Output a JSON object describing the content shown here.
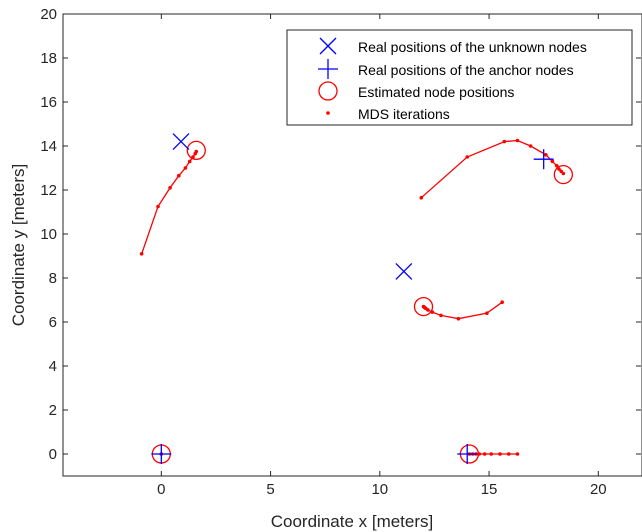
{
  "chart_data": {
    "type": "scatter",
    "xlabel": "Coordinate x [meters]",
    "ylabel": "Coordinate y [meters]",
    "xlim": [
      -4.5,
      22
    ],
    "ylim": [
      -1,
      20
    ],
    "xticks": [
      0,
      5,
      10,
      15,
      20
    ],
    "yticks": [
      0,
      2,
      4,
      6,
      8,
      10,
      12,
      14,
      16,
      18,
      20
    ],
    "grid": false,
    "legend_position": "top-right",
    "colors": {
      "real": "#0000ff",
      "estimate": "#ff0000",
      "axis": "#262626"
    },
    "legend": [
      {
        "marker": "x",
        "label": "Real positions of the unknown nodes"
      },
      {
        "marker": "+",
        "label": "Real positions of the anchor nodes"
      },
      {
        "marker": "o",
        "label": "Estimated node positions"
      },
      {
        "marker": ".",
        "label": "MDS iterations"
      }
    ],
    "unknown_nodes": [
      [
        0.9,
        14.2
      ],
      [
        11.1,
        8.3
      ]
    ],
    "anchor_nodes": [
      [
        0,
        0
      ],
      [
        14,
        0
      ],
      [
        17.5,
        13.4
      ]
    ],
    "estimated_nodes": [
      [
        1.6,
        13.8
      ],
      [
        12.0,
        6.7
      ],
      [
        18.4,
        12.7
      ],
      [
        0,
        0
      ],
      [
        14.1,
        0
      ]
    ],
    "mds_iterations": [
      [
        [
          -0.9,
          9.1
        ],
        [
          -0.15,
          11.25
        ],
        [
          0.4,
          12.1
        ],
        [
          0.8,
          12.65
        ],
        [
          1.1,
          13.0
        ],
        [
          1.3,
          13.3
        ],
        [
          1.45,
          13.5
        ],
        [
          1.55,
          13.65
        ],
        [
          1.6,
          13.75
        ]
      ],
      [
        [
          11.9,
          11.65
        ],
        [
          14.0,
          13.5
        ],
        [
          15.7,
          14.2
        ],
        [
          16.3,
          14.25
        ],
        [
          16.9,
          14.0
        ],
        [
          17.6,
          13.6
        ],
        [
          17.9,
          13.3
        ],
        [
          18.1,
          13.1
        ],
        [
          18.2,
          12.95
        ],
        [
          18.3,
          12.85
        ],
        [
          18.4,
          12.75
        ]
      ],
      [
        [
          15.6,
          6.9
        ],
        [
          14.9,
          6.4
        ],
        [
          13.6,
          6.15
        ],
        [
          12.8,
          6.3
        ],
        [
          12.4,
          6.45
        ],
        [
          12.2,
          6.55
        ],
        [
          12.1,
          6.62
        ],
        [
          12.05,
          6.66
        ],
        [
          12.0,
          6.7
        ]
      ],
      [
        [
          16.3,
          0
        ],
        [
          15.9,
          0
        ],
        [
          15.5,
          0
        ],
        [
          15.1,
          0
        ],
        [
          14.8,
          0
        ],
        [
          14.55,
          0
        ],
        [
          14.4,
          0
        ],
        [
          14.25,
          0
        ],
        [
          14.1,
          0
        ]
      ],
      [
        [
          0,
          0
        ],
        [
          0,
          0
        ]
      ]
    ]
  }
}
